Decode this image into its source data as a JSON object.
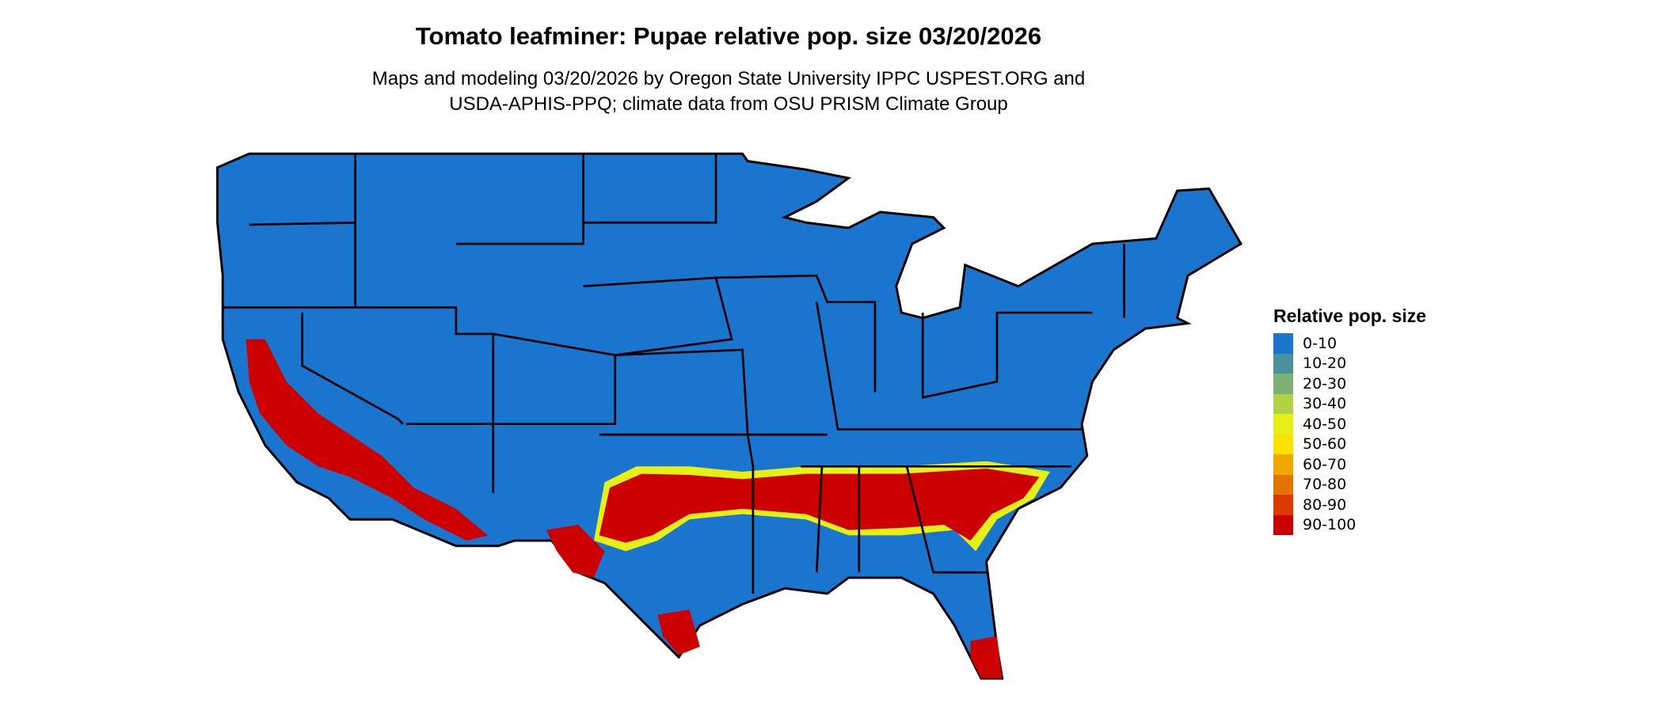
{
  "title": "Tomato leafminer: Pupae relative pop. size 03/20/2026",
  "subtitle_line1": "Maps and modeling 03/20/2026 by Oregon State University IPPC USPEST.ORG and",
  "subtitle_line2": "USDA-APHIS-PPQ; climate data from OSU PRISM Climate Group",
  "legend": {
    "title": "Relative pop. size",
    "items": [
      {
        "label": "0-10",
        "color": "#1a75cf"
      },
      {
        "label": "10-20",
        "color": "#4a929b"
      },
      {
        "label": "20-30",
        "color": "#7db072"
      },
      {
        "label": "30-40",
        "color": "#b3d144"
      },
      {
        "label": "40-50",
        "color": "#e6f016"
      },
      {
        "label": "50-60",
        "color": "#fae100"
      },
      {
        "label": "60-70",
        "color": "#f0a800"
      },
      {
        "label": "70-80",
        "color": "#e57300"
      },
      {
        "label": "80-90",
        "color": "#dc3a00"
      },
      {
        "label": "90-100",
        "color": "#cc0000"
      }
    ]
  },
  "map": {
    "region": "Contiguous United States",
    "state_border_color": "#000000"
  }
}
